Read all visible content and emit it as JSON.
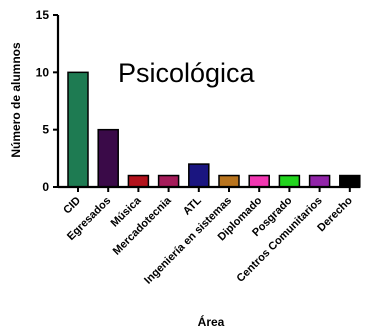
{
  "chart_data": {
    "type": "bar",
    "title": "Psicológica",
    "xlabel": "Área",
    "ylabel": "Número de alumnos",
    "ylim": [
      0,
      15
    ],
    "yticks": [
      0,
      5,
      10,
      15
    ],
    "grid": false,
    "categories": [
      "CID",
      "Egresados",
      "Música",
      "Mercadotecnia",
      "ATL",
      "Ingeniería en sistemas",
      "Diplomado",
      "Posgrado",
      "Centros Comunitarios",
      "Derecho"
    ],
    "values": [
      10,
      5,
      1,
      1,
      2,
      1,
      1,
      1,
      1,
      1
    ],
    "colors": [
      "#1E7B52",
      "#3A0A48",
      "#B3121C",
      "#A51C5A",
      "#1A1580",
      "#B8741E",
      "#F237B2",
      "#22D41E",
      "#9124A8",
      "#000000"
    ]
  }
}
